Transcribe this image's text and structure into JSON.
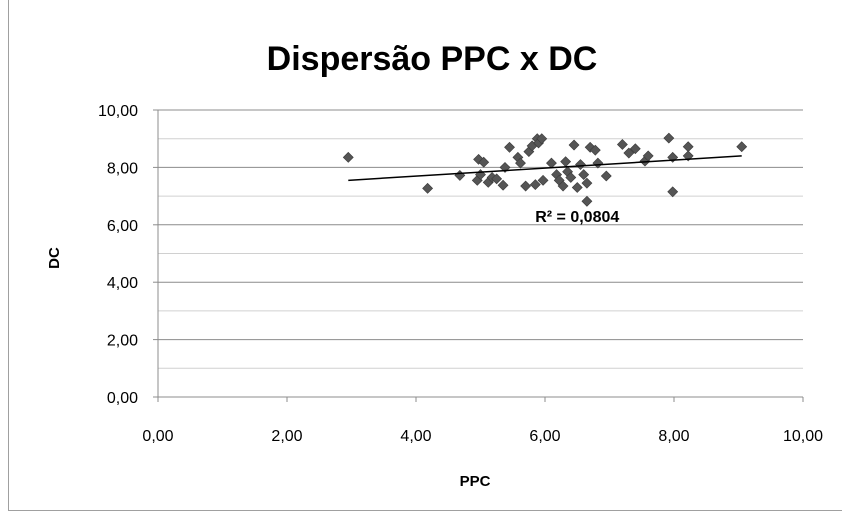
{
  "chart_data": {
    "type": "scatter",
    "title": "Dispersão PPC x DC",
    "xlabel": "PPC",
    "ylabel": "DC",
    "xlim": [
      0,
      10
    ],
    "ylim": [
      0,
      10
    ],
    "x_ticks": [
      "0,00",
      "2,00",
      "4,00",
      "6,00",
      "8,00",
      "10,00"
    ],
    "y_ticks": [
      "0,00",
      "2,00",
      "4,00",
      "6,00",
      "8,00",
      "10,00"
    ],
    "grid": true,
    "marker_color": "#555555",
    "trendline": {
      "x": [
        2.95,
        9.05
      ],
      "y": [
        7.55,
        8.4
      ],
      "color": "#000000"
    },
    "annotation": {
      "text": "R² = 0,0804",
      "x": 6.5,
      "y": 6.3
    },
    "points": [
      {
        "x": 2.95,
        "y": 8.35
      },
      {
        "x": 4.18,
        "y": 7.27
      },
      {
        "x": 4.68,
        "y": 7.72
      },
      {
        "x": 4.95,
        "y": 7.55
      },
      {
        "x": 4.97,
        "y": 8.28
      },
      {
        "x": 5.0,
        "y": 7.75
      },
      {
        "x": 5.05,
        "y": 8.18
      },
      {
        "x": 5.12,
        "y": 7.48
      },
      {
        "x": 5.18,
        "y": 7.65
      },
      {
        "x": 5.25,
        "y": 7.6
      },
      {
        "x": 5.35,
        "y": 7.38
      },
      {
        "x": 5.38,
        "y": 8.0
      },
      {
        "x": 5.45,
        "y": 8.7
      },
      {
        "x": 5.58,
        "y": 8.35
      },
      {
        "x": 5.62,
        "y": 8.15
      },
      {
        "x": 5.7,
        "y": 7.35
      },
      {
        "x": 5.75,
        "y": 8.55
      },
      {
        "x": 5.8,
        "y": 8.75
      },
      {
        "x": 5.85,
        "y": 7.4
      },
      {
        "x": 5.88,
        "y": 9.0
      },
      {
        "x": 5.9,
        "y": 8.85
      },
      {
        "x": 5.95,
        "y": 9.0
      },
      {
        "x": 5.97,
        "y": 7.55
      },
      {
        "x": 6.1,
        "y": 8.15
      },
      {
        "x": 6.18,
        "y": 7.75
      },
      {
        "x": 6.22,
        "y": 7.55
      },
      {
        "x": 6.28,
        "y": 7.35
      },
      {
        "x": 6.32,
        "y": 8.2
      },
      {
        "x": 6.35,
        "y": 7.85
      },
      {
        "x": 6.4,
        "y": 7.65
      },
      {
        "x": 6.45,
        "y": 8.78
      },
      {
        "x": 6.5,
        "y": 7.3
      },
      {
        "x": 6.55,
        "y": 8.1
      },
      {
        "x": 6.6,
        "y": 7.75
      },
      {
        "x": 6.65,
        "y": 7.45
      },
      {
        "x": 6.65,
        "y": 6.82
      },
      {
        "x": 6.7,
        "y": 8.7
      },
      {
        "x": 6.78,
        "y": 8.6
      },
      {
        "x": 6.82,
        "y": 8.15
      },
      {
        "x": 6.95,
        "y": 7.7
      },
      {
        "x": 7.2,
        "y": 8.8
      },
      {
        "x": 7.3,
        "y": 8.5
      },
      {
        "x": 7.4,
        "y": 8.65
      },
      {
        "x": 7.55,
        "y": 8.22
      },
      {
        "x": 7.6,
        "y": 8.4
      },
      {
        "x": 7.92,
        "y": 9.02
      },
      {
        "x": 7.98,
        "y": 8.35
      },
      {
        "x": 7.98,
        "y": 7.15
      },
      {
        "x": 8.22,
        "y": 8.72
      },
      {
        "x": 8.22,
        "y": 8.4
      },
      {
        "x": 9.05,
        "y": 8.72
      }
    ]
  }
}
